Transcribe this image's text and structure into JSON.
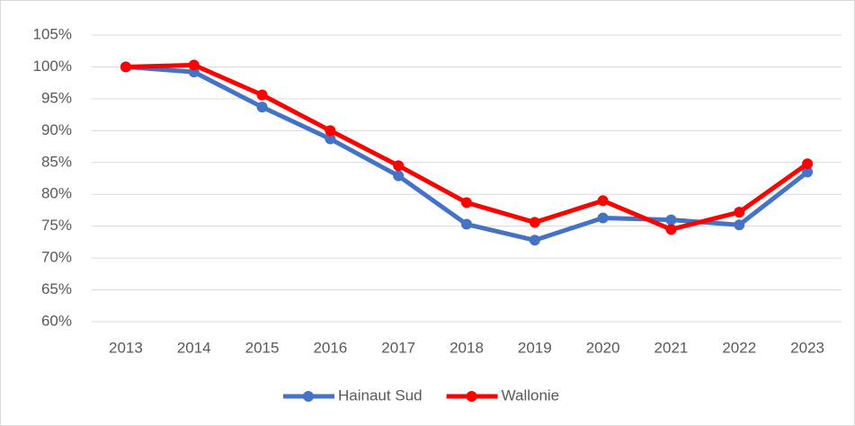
{
  "chart_data": {
    "type": "line",
    "categories": [
      "2013",
      "2014",
      "2015",
      "2016",
      "2017",
      "2018",
      "2019",
      "2020",
      "2021",
      "2022",
      "2023"
    ],
    "series": [
      {
        "name": "Hainaut Sud",
        "color": "#4472c4",
        "values": [
          100,
          99.2,
          93.7,
          88.7,
          82.9,
          75.3,
          72.8,
          76.3,
          76.0,
          75.2,
          83.5
        ]
      },
      {
        "name": "Wallonie",
        "color": "#ff0000",
        "values": [
          100,
          100.3,
          95.6,
          90.0,
          84.5,
          78.7,
          75.6,
          79.0,
          74.5,
          77.2,
          84.8
        ]
      }
    ],
    "ylim": [
      60,
      105
    ],
    "yticks": [
      {
        "value": 60,
        "label": "60%"
      },
      {
        "value": 65,
        "label": "65%"
      },
      {
        "value": 70,
        "label": "70%"
      },
      {
        "value": 75,
        "label": "75%"
      },
      {
        "value": 80,
        "label": "80%"
      },
      {
        "value": 85,
        "label": "85%"
      },
      {
        "value": 90,
        "label": "90%"
      },
      {
        "value": 95,
        "label": "95%"
      },
      {
        "value": 100,
        "label": "100%"
      },
      {
        "value": 105,
        "label": "105%"
      }
    ],
    "grid": true,
    "legend": "bottom"
  }
}
